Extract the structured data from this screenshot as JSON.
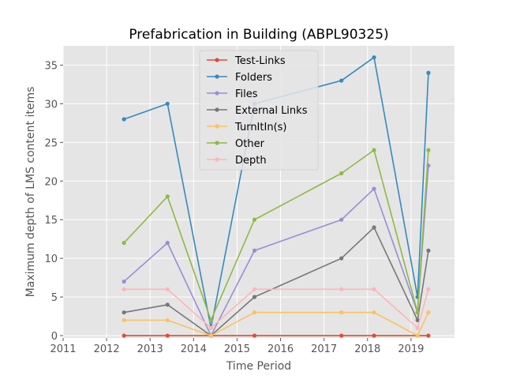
{
  "chart_data": {
    "type": "line",
    "title": "Prefabrication in Building (ABPL90325)",
    "xlabel": "Time Period",
    "ylabel": "Maximum depth of LMS content items",
    "xlim": [
      2011,
      2020
    ],
    "ylim": [
      -0.3,
      37.5
    ],
    "xticks": [
      2011,
      2012,
      2013,
      2014,
      2015,
      2016,
      2017,
      2018,
      2019
    ],
    "yticks": [
      0,
      5,
      10,
      15,
      20,
      25,
      30,
      35
    ],
    "grid": true,
    "legend_position": "upper-center",
    "x": [
      2012.4,
      2013.4,
      2014.4,
      2015.4,
      2017.4,
      2018.15,
      2019.15,
      2019.4
    ],
    "series": [
      {
        "name": "Test-Links",
        "color": "#e24a33",
        "values": [
          0,
          0,
          0,
          0,
          0,
          0,
          0,
          0
        ]
      },
      {
        "name": "Folders",
        "color": "#348abd",
        "values": [
          28,
          30,
          1,
          30,
          33,
          36,
          5,
          34
        ]
      },
      {
        "name": "Files",
        "color": "#988ed5",
        "values": [
          7,
          12,
          0,
          11,
          15,
          19,
          3,
          22
        ]
      },
      {
        "name": "External Links",
        "color": "#777777",
        "values": [
          3,
          4,
          0,
          5,
          10,
          14,
          2,
          11
        ]
      },
      {
        "name": "TurnItIn(s)",
        "color": "#fbc15e",
        "values": [
          2,
          2,
          0,
          3,
          3,
          3,
          0,
          3
        ]
      },
      {
        "name": "Other",
        "color": "#8eba42",
        "values": [
          12,
          18,
          2,
          15,
          21,
          24,
          3,
          24
        ]
      },
      {
        "name": "Depth",
        "color": "#ffb5b8",
        "values": [
          6,
          6,
          1,
          6,
          6,
          6,
          1,
          6
        ]
      }
    ]
  }
}
